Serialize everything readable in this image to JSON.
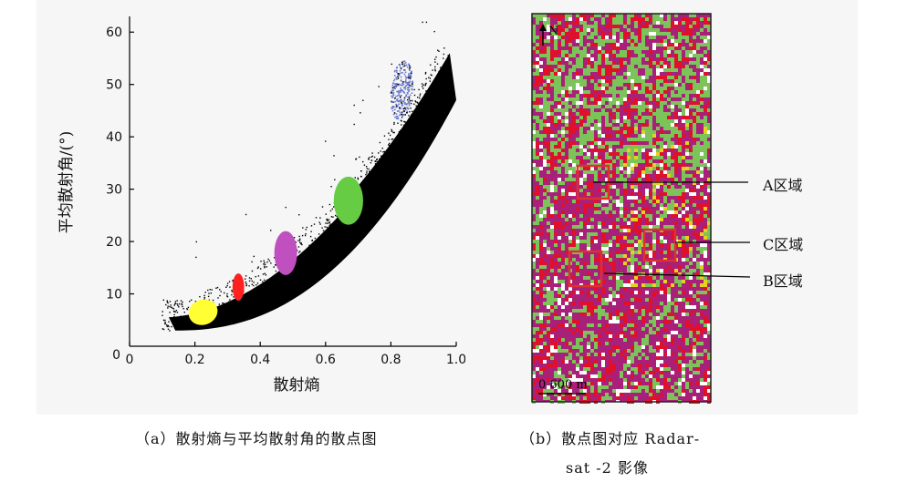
{
  "chart_data": [
    {
      "type": "scatter",
      "xlabel": "散射熵",
      "ylabel": "平均散射角/(°)",
      "xlim": [
        0,
        1.0
      ],
      "ylim": [
        0,
        63
      ],
      "xticks": [
        "0",
        "0.2",
        "0.4",
        "0.6",
        "0.8",
        "1.0"
      ],
      "yticks": [
        "10",
        "20",
        "30",
        "40",
        "50",
        "60"
      ],
      "series": [
        {
          "color": "#000000",
          "points": [
            [
              0.12,
              3
            ],
            [
              0.2,
              6
            ],
            [
              0.3,
              9
            ],
            [
              0.4,
              12
            ],
            [
              0.5,
              16
            ],
            [
              0.6,
              21
            ],
            [
              0.7,
              27
            ],
            [
              0.8,
              34
            ],
            [
              0.9,
              43
            ],
            [
              0.97,
              52
            ]
          ]
        },
        {
          "color": "#ffff33",
          "points": [
            [
              0.2,
              6
            ],
            [
              0.22,
              7
            ],
            [
              0.25,
              6
            ],
            [
              0.27,
              7.5
            ],
            [
              0.18,
              5
            ]
          ]
        },
        {
          "color": "#ff2020",
          "points": [
            [
              0.32,
              10.5
            ],
            [
              0.34,
              12
            ],
            [
              0.33,
              11
            ],
            [
              0.35,
              10.8
            ]
          ]
        },
        {
          "color": "#c050c0",
          "points": [
            [
              0.46,
              18
            ],
            [
              0.48,
              19
            ],
            [
              0.5,
              17
            ],
            [
              0.47,
              16
            ]
          ]
        },
        {
          "color": "#66cc44",
          "points": [
            [
              0.64,
              27
            ],
            [
              0.67,
              29
            ],
            [
              0.7,
              28
            ],
            [
              0.66,
              25
            ]
          ]
        },
        {
          "color": "#6677cc",
          "points": [
            [
              0.8,
              46
            ],
            [
              0.82,
              50
            ],
            [
              0.85,
              52
            ],
            [
              0.83,
              48
            ]
          ]
        }
      ]
    }
  ],
  "map": {
    "north_label": "N",
    "scale_label": "0  600 m",
    "callouts": {
      "a": "A区域",
      "c": "C区域",
      "b": "B区域"
    },
    "colors": {
      "magenta": "#a8207a",
      "green": "#7cc45a",
      "red": "#e0102a",
      "white": "#ffffff",
      "yellow": "#e8d020",
      "box": "#e0302a"
    }
  },
  "captions": {
    "left": "（a）散射熵与平均散射角的散点图",
    "right_line1": "（b）散点图对应 Radar-",
    "right_line2": "sat -2 影像"
  }
}
